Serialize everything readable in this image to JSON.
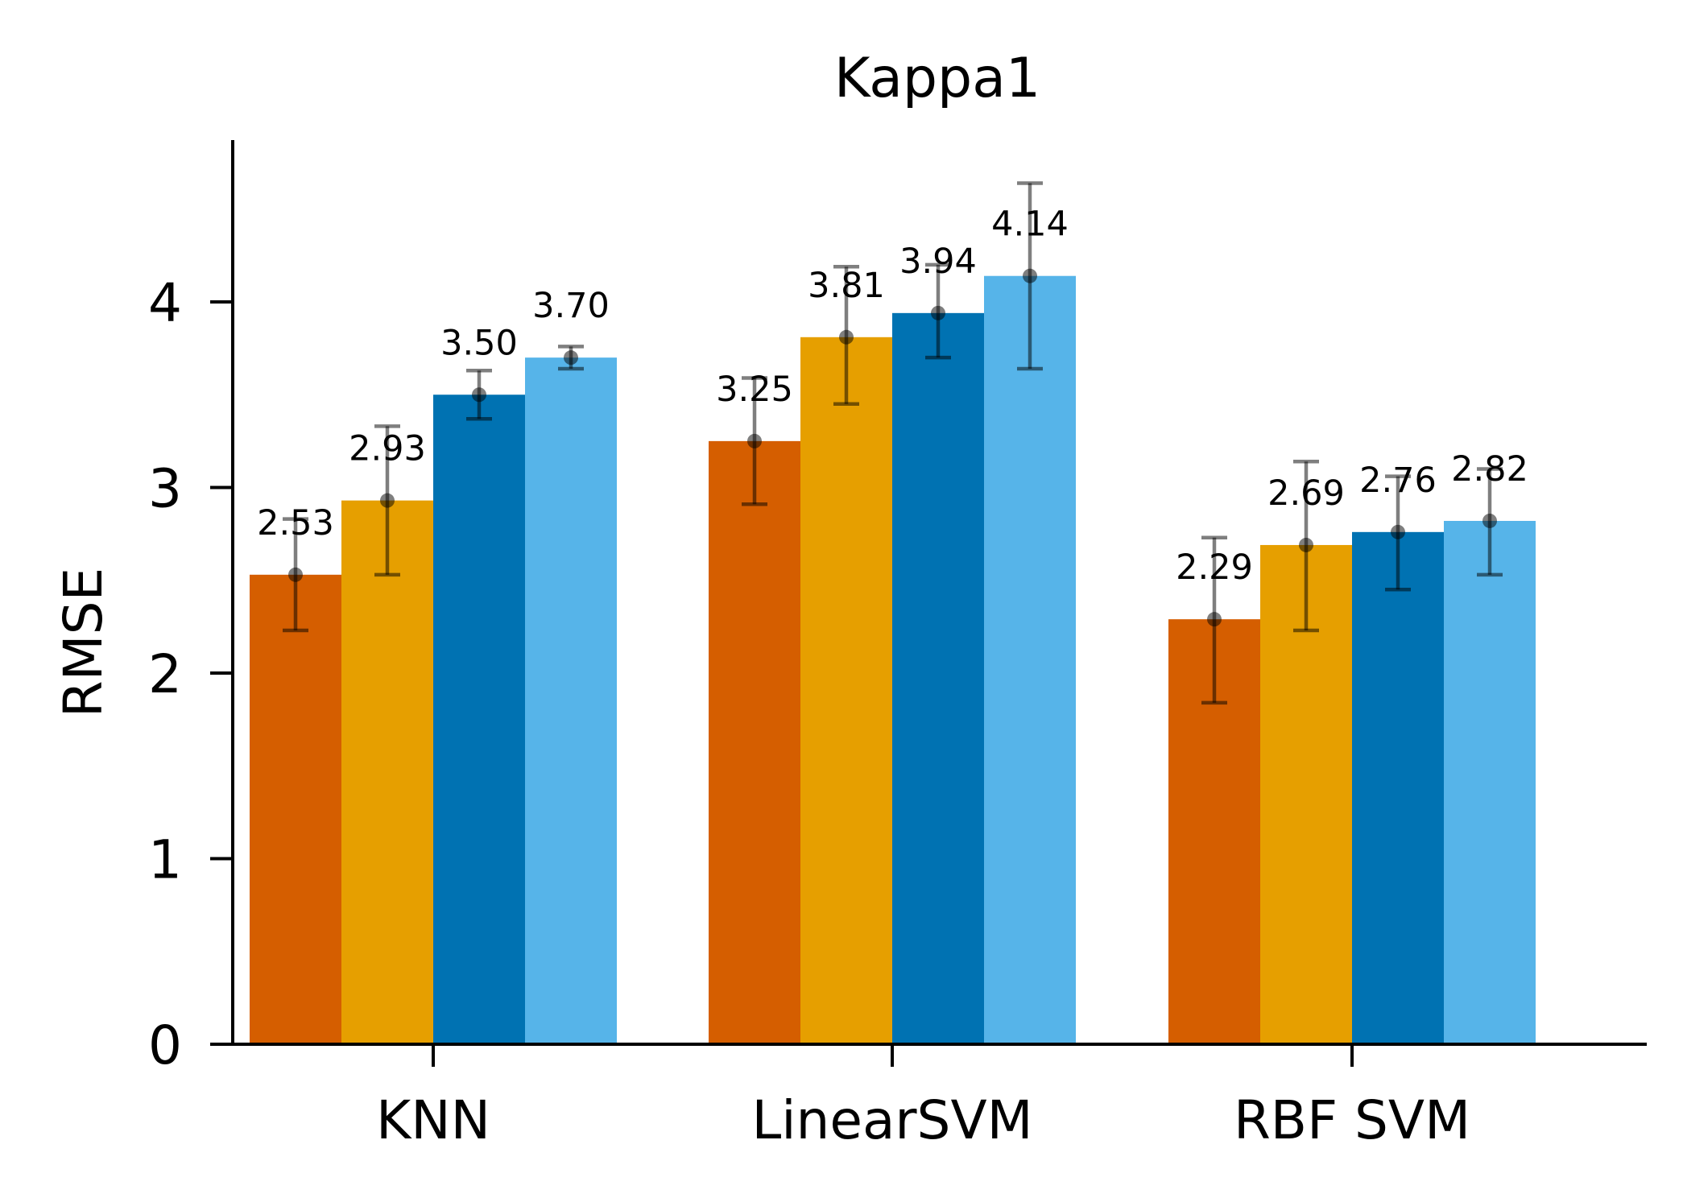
{
  "chart_data": {
    "type": "bar",
    "title": "Kappa1",
    "xlabel": "",
    "ylabel": "RMSE",
    "categories": [
      "KNN",
      "LinearSVM",
      "RBF SVM"
    ],
    "yticks": [
      "0",
      "1",
      "2",
      "3",
      "4"
    ],
    "ylim": [
      0,
      4.88
    ],
    "grid": false,
    "series": [
      {
        "color": "#D55E00",
        "values": [
          2.53,
          3.25,
          2.29
        ],
        "err_low": [
          2.23,
          2.91,
          1.84
        ],
        "err_high": [
          2.83,
          3.59,
          2.73
        ],
        "labels": [
          "2.53",
          "3.25",
          "2.29"
        ]
      },
      {
        "color": "#E69F00",
        "values": [
          2.93,
          3.81,
          2.69
        ],
        "err_low": [
          2.53,
          3.45,
          2.23
        ],
        "err_high": [
          3.33,
          4.19,
          3.14
        ],
        "labels": [
          "2.93",
          "3.81",
          "2.69"
        ]
      },
      {
        "color": "#0072B2",
        "values": [
          3.5,
          3.94,
          2.76
        ],
        "err_low": [
          3.37,
          3.7,
          2.45
        ],
        "err_high": [
          3.63,
          4.2,
          3.06
        ],
        "labels": [
          "3.50",
          "3.94",
          "2.76"
        ]
      },
      {
        "color": "#56B4E9",
        "values": [
          3.7,
          4.14,
          2.82
        ],
        "err_low": [
          3.64,
          3.64,
          2.53
        ],
        "err_high": [
          3.76,
          4.64,
          3.1
        ],
        "labels": [
          "3.70",
          "4.14",
          "2.82"
        ]
      }
    ]
  }
}
